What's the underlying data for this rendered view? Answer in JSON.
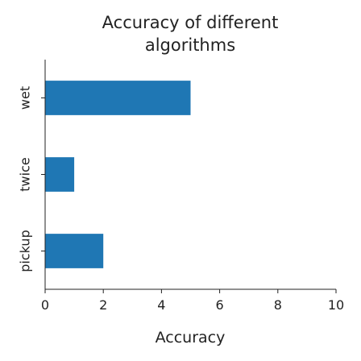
{
  "chart_data": {
    "type": "bar",
    "orientation": "horizontal",
    "title": [
      "Accuracy of different",
      "algorithms"
    ],
    "xlabel": "Accuracy",
    "ylabel": "",
    "categories": [
      "wet",
      "twice",
      "pickup"
    ],
    "values": [
      5,
      1,
      2
    ],
    "xlim": [
      0,
      10
    ],
    "xticks": [
      0,
      2,
      4,
      6,
      8,
      10
    ],
    "grid": false,
    "bar_color": "#1f77b4"
  }
}
